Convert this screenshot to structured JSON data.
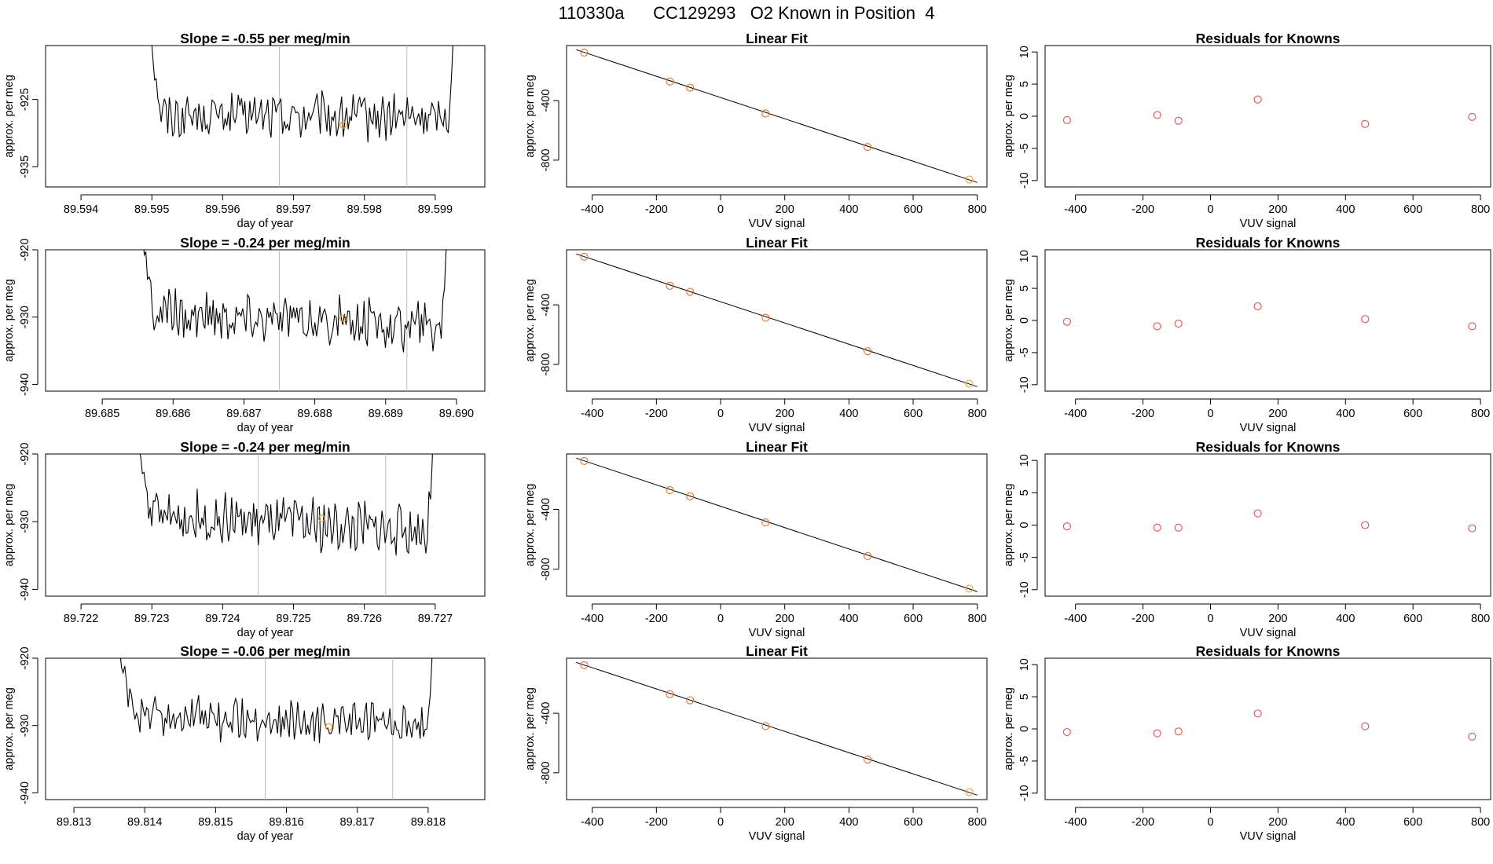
{
  "figure_title": "110330a      CC129293   O2 Known in Position  4",
  "colors": {
    "trace": "#000000",
    "vline": "#bdbdbd",
    "known_point": "#f0a020",
    "residual_point": "#e05050",
    "fit_point": "#e07030"
  },
  "chart_data": [
    {
      "type": "line",
      "row": 1,
      "title": "Slope =  -0.55  per meg/min",
      "xlabel": "day of year",
      "ylabel": "approx. per meg",
      "xlim": [
        89.5935,
        89.5997
      ],
      "ylim": [
        -938,
        -917
      ],
      "xticks": [
        "89.594",
        "89.595",
        "89.596",
        "89.597",
        "89.598",
        "89.599"
      ],
      "xtick_values": [
        89.594,
        89.595,
        89.596,
        89.597,
        89.598,
        89.599
      ],
      "yticks": [
        "-925",
        "-935"
      ],
      "ytick_values": [
        -925,
        -935
      ],
      "trace": {
        "x_start": 89.5949,
        "x_end": 89.5993,
        "baseline_start": -927.3,
        "baseline_end": -927.8,
        "noise": 1.8,
        "wall_start": -905,
        "wall_end": -900
      },
      "vlines": [
        89.5968,
        89.5986
      ],
      "known_point": [
        89.5977,
        -928.8
      ]
    },
    {
      "type": "scatter",
      "row": 1,
      "title": "Linear Fit",
      "xlabel": "VUV signal",
      "ylabel": "approx. per meg",
      "xlim": [
        -480,
        830
      ],
      "ylim": [
        -980,
        -30
      ],
      "xticks": [
        "-400",
        "-200",
        "0",
        "200",
        "400",
        "600",
        "800"
      ],
      "xtick_values": [
        -400,
        -200,
        0,
        200,
        400,
        600,
        800
      ],
      "yticks": [
        "-400",
        "-800"
      ],
      "ytick_values": [
        -400,
        -800
      ],
      "x": [
        -425,
        -158,
        -95,
        140,
        458,
        775
      ],
      "y": [
        -77,
        -272,
        -313,
        -487,
        -712,
        -930
      ],
      "fit_line": [
        [
          -450,
          -58
        ],
        [
          800,
          -950
        ]
      ]
    },
    {
      "type": "scatter",
      "row": 1,
      "title": "Residuals for Knowns",
      "xlabel": "VUV signal",
      "ylabel": "approx. per meg",
      "xlim": [
        -490,
        830
      ],
      "ylim": [
        -11,
        11
      ],
      "xticks": [
        "-400",
        "-200",
        "0",
        "200",
        "400",
        "600",
        "800"
      ],
      "xtick_values": [
        -400,
        -200,
        0,
        200,
        400,
        600,
        800
      ],
      "yticks": [
        "10",
        "5",
        "0",
        "-5",
        "-10"
      ],
      "ytick_values": [
        10,
        5,
        0,
        -5,
        -10
      ],
      "x": [
        -425,
        -158,
        -95,
        140,
        458,
        775
      ],
      "y": [
        -0.6,
        0.2,
        -0.7,
        2.6,
        -1.2,
        -0.1
      ]
    },
    {
      "type": "line",
      "row": 2,
      "title": "Slope =  -0.24  per meg/min",
      "xlabel": "day of year",
      "ylabel": "approx. per meg",
      "xlim": [
        89.6842,
        89.6904
      ],
      "ylim": [
        -941,
        -920
      ],
      "xticks": [
        "89.685",
        "89.686",
        "89.687",
        "89.688",
        "89.689",
        "89.690"
      ],
      "xtick_values": [
        89.685,
        89.686,
        89.687,
        89.688,
        89.689,
        89.69
      ],
      "yticks": [
        "-920",
        "-930",
        "-940"
      ],
      "ytick_values": [
        -920,
        -930,
        -940
      ],
      "trace": {
        "x_start": 89.6855,
        "x_end": 89.6899,
        "baseline_start": -929.5,
        "baseline_end": -931.5,
        "noise": 1.9,
        "wall_start": -910,
        "wall_end": -905
      },
      "vlines": [
        89.6875,
        89.6893
      ],
      "known_point": [
        89.6884,
        -930.2
      ]
    },
    {
      "type": "scatter",
      "row": 2,
      "title": "Linear Fit",
      "xlabel": "VUV signal",
      "ylabel": "approx. per meg",
      "xlim": [
        -480,
        830
      ],
      "ylim": [
        -980,
        -30
      ],
      "xticks": [
        "-400",
        "-200",
        "0",
        "200",
        "400",
        "600",
        "800"
      ],
      "xtick_values": [
        -400,
        -200,
        0,
        200,
        400,
        600,
        800
      ],
      "yticks": [
        "-400",
        "-800"
      ],
      "ytick_values": [
        -400,
        -800
      ],
      "x": [
        -425,
        -158,
        -95,
        140,
        458,
        775
      ],
      "y": [
        -77,
        -272,
        -313,
        -487,
        -712,
        -930
      ],
      "fit_line": [
        [
          -450,
          -58
        ],
        [
          800,
          -950
        ]
      ]
    },
    {
      "type": "scatter",
      "row": 2,
      "title": "Residuals for Knowns",
      "xlabel": "VUV signal",
      "ylabel": "approx. per meg",
      "xlim": [
        -490,
        830
      ],
      "ylim": [
        -11,
        11
      ],
      "xticks": [
        "-400",
        "-200",
        "0",
        "200",
        "400",
        "600",
        "800"
      ],
      "xtick_values": [
        -400,
        -200,
        0,
        200,
        400,
        600,
        800
      ],
      "yticks": [
        "10",
        "5",
        "0",
        "-5",
        "-10"
      ],
      "ytick_values": [
        10,
        5,
        0,
        -5,
        -10
      ],
      "x": [
        -425,
        -158,
        -95,
        140,
        458,
        775
      ],
      "y": [
        -0.2,
        -0.9,
        -0.5,
        2.2,
        0.2,
        -0.9
      ]
    },
    {
      "type": "line",
      "row": 3,
      "title": "Slope =  -0.24  per meg/min",
      "xlabel": "day of year",
      "ylabel": "approx. per meg",
      "xlim": [
        89.7215,
        89.7277
      ],
      "ylim": [
        -941,
        -920
      ],
      "xticks": [
        "89.722",
        "89.723",
        "89.724",
        "89.725",
        "89.726",
        "89.727"
      ],
      "xtick_values": [
        89.722,
        89.723,
        89.724,
        89.725,
        89.726,
        89.727
      ],
      "yticks": [
        "-920",
        "-930",
        "-940"
      ],
      "ytick_values": [
        -920,
        -930,
        -940
      ],
      "trace": {
        "x_start": 89.7228,
        "x_end": 89.727,
        "baseline_start": -929.0,
        "baseline_end": -931.5,
        "noise": 2.0,
        "wall_start": -918,
        "wall_end": -908
      },
      "vlines": [
        89.7245,
        89.7263
      ],
      "known_point": [
        89.7254,
        -929.5
      ]
    },
    {
      "type": "scatter",
      "row": 3,
      "title": "Linear Fit",
      "xlabel": "VUV signal",
      "ylabel": "approx. per meg",
      "xlim": [
        -480,
        830
      ],
      "ylim": [
        -980,
        -30
      ],
      "xticks": [
        "-400",
        "-200",
        "0",
        "200",
        "400",
        "600",
        "800"
      ],
      "xtick_values": [
        -400,
        -200,
        0,
        200,
        400,
        600,
        800
      ],
      "yticks": [
        "-400",
        "-800"
      ],
      "ytick_values": [
        -400,
        -800
      ],
      "x": [
        -425,
        -158,
        -95,
        140,
        458,
        775
      ],
      "y": [
        -77,
        -272,
        -313,
        -487,
        -712,
        -930
      ],
      "fit_line": [
        [
          -450,
          -58
        ],
        [
          800,
          -950
        ]
      ]
    },
    {
      "type": "scatter",
      "row": 3,
      "title": "Residuals for Knowns",
      "xlabel": "VUV signal",
      "ylabel": "approx. per meg",
      "xlim": [
        -490,
        830
      ],
      "ylim": [
        -11,
        11
      ],
      "xticks": [
        "-400",
        "-200",
        "0",
        "200",
        "400",
        "600",
        "800"
      ],
      "xtick_values": [
        -400,
        -200,
        0,
        200,
        400,
        600,
        800
      ],
      "yticks": [
        "10",
        "5",
        "0",
        "-5",
        "-10"
      ],
      "ytick_values": [
        10,
        5,
        0,
        -5,
        -10
      ],
      "x": [
        -425,
        -158,
        -95,
        140,
        458,
        775
      ],
      "y": [
        -0.2,
        -0.4,
        -0.4,
        1.8,
        0.0,
        -0.5
      ]
    },
    {
      "type": "line",
      "row": 4,
      "title": "Slope =  -0.06  per meg/min",
      "xlabel": "day of year",
      "ylabel": "approx. per meg",
      "xlim": [
        89.8126,
        89.8188
      ],
      "ylim": [
        -941,
        -920
      ],
      "xticks": [
        "89.813",
        "89.814",
        "89.815",
        "89.816",
        "89.817",
        "89.818"
      ],
      "xtick_values": [
        89.813,
        89.814,
        89.815,
        89.816,
        89.817,
        89.818
      ],
      "yticks": [
        "-920",
        "-930",
        "-940"
      ],
      "ytick_values": [
        -920,
        -930,
        -940
      ],
      "trace": {
        "x_start": 89.8136,
        "x_end": 89.8181,
        "baseline_start": -928.5,
        "baseline_end": -930.0,
        "noise": 1.6,
        "wall_start": -915,
        "wall_end": -908
      },
      "vlines": [
        89.8157,
        89.8175
      ],
      "known_point": [
        89.8166,
        -930.2
      ]
    },
    {
      "type": "scatter",
      "row": 4,
      "title": "Linear Fit",
      "xlabel": "VUV signal",
      "ylabel": "approx. per meg",
      "xlim": [
        -480,
        830
      ],
      "ylim": [
        -980,
        -30
      ],
      "xticks": [
        "-400",
        "-200",
        "0",
        "200",
        "400",
        "600",
        "800"
      ],
      "xtick_values": [
        -400,
        -200,
        0,
        200,
        400,
        600,
        800
      ],
      "yticks": [
        "-400",
        "-800"
      ],
      "ytick_values": [
        -400,
        -800
      ],
      "x": [
        -425,
        -158,
        -95,
        140,
        458,
        775
      ],
      "y": [
        -77,
        -272,
        -313,
        -487,
        -712,
        -930
      ],
      "fit_line": [
        [
          -450,
          -58
        ],
        [
          800,
          -950
        ]
      ]
    },
    {
      "type": "scatter",
      "row": 4,
      "title": "Residuals for Knowns",
      "xlabel": "VUV signal",
      "ylabel": "approx. per meg",
      "xlim": [
        -490,
        830
      ],
      "ylim": [
        -11,
        11
      ],
      "xticks": [
        "-400",
        "-200",
        "0",
        "200",
        "400",
        "600",
        "800"
      ],
      "xtick_values": [
        -400,
        -200,
        0,
        200,
        400,
        600,
        800
      ],
      "yticks": [
        "10",
        "5",
        "0",
        "-5",
        "-10"
      ],
      "ytick_values": [
        10,
        5,
        0,
        -5,
        -10
      ],
      "x": [
        -425,
        -158,
        -95,
        140,
        458,
        775
      ],
      "y": [
        -0.5,
        -0.7,
        -0.4,
        2.4,
        0.4,
        -1.2
      ]
    }
  ]
}
